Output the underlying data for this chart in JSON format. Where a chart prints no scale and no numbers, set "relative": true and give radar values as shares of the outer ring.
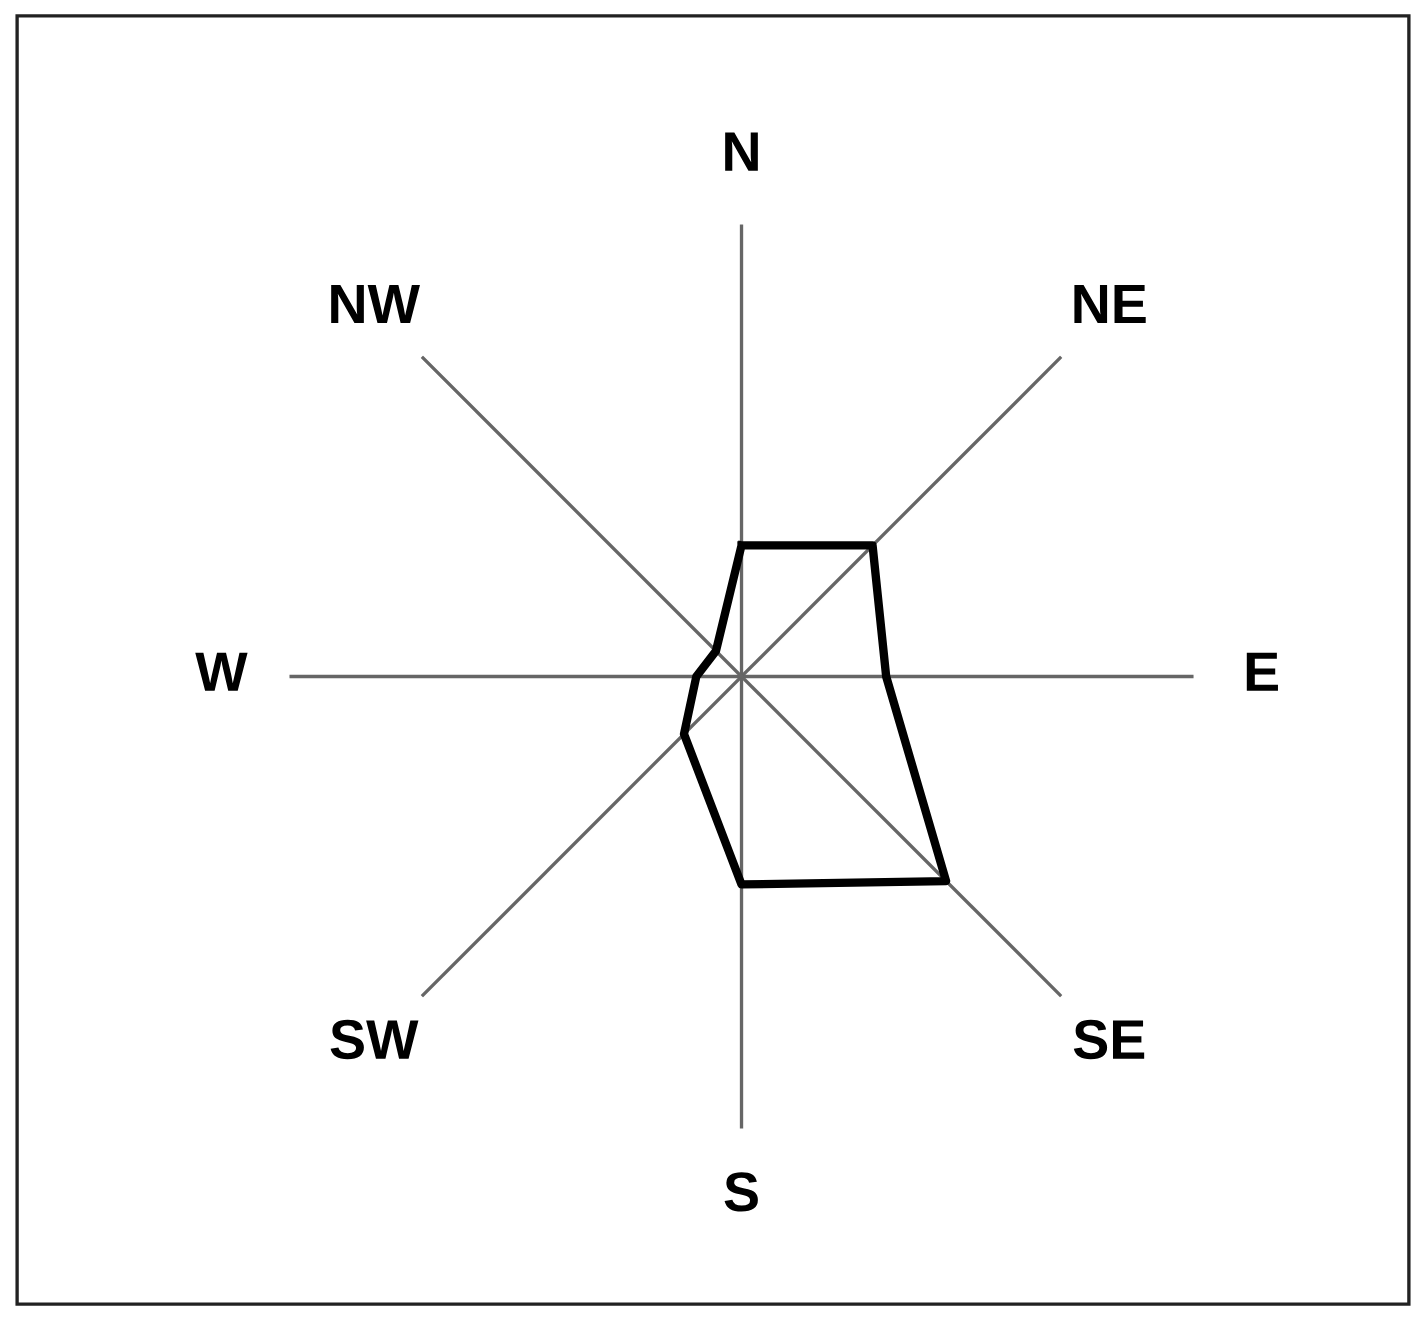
{
  "chart_data": {
    "type": "radar",
    "categories": [
      "N",
      "NE",
      "E",
      "SE",
      "S",
      "SW",
      "W",
      "NW"
    ],
    "relative": true,
    "series": [
      {
        "color": "#000000",
        "values": [
          0.29,
          0.41,
          0.32,
          0.64,
          0.46,
          0.18,
          0.1,
          0.08
        ]
      }
    ]
  }
}
